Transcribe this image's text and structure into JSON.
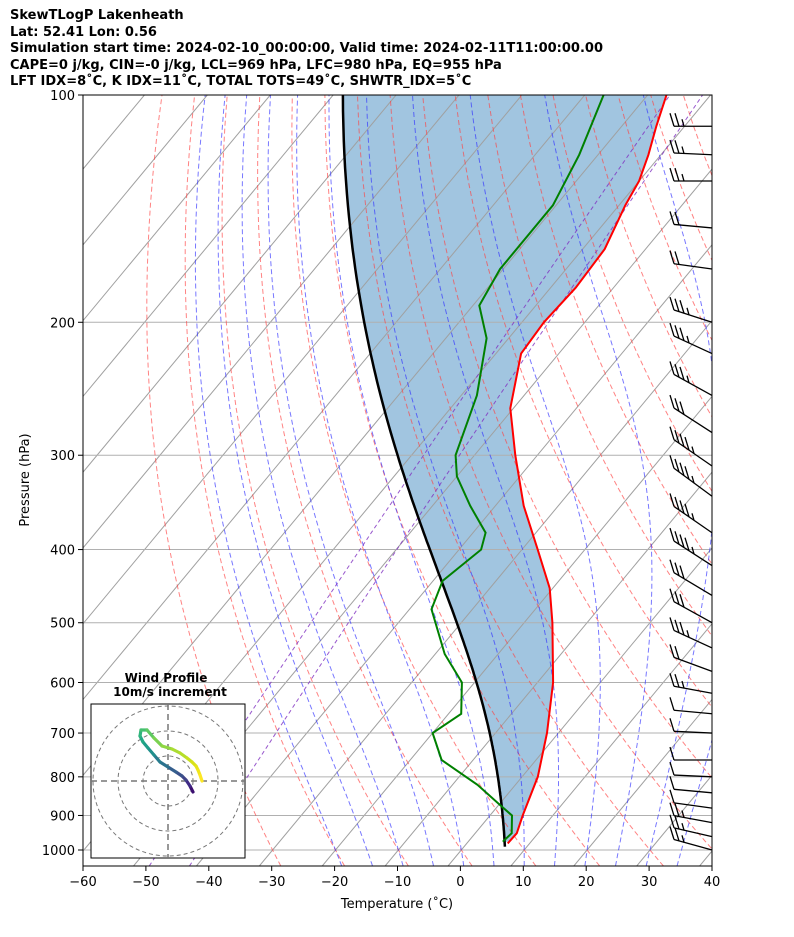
{
  "header": {
    "line1": "SkewTLogP Lakenheath",
    "line2": "Lat: 52.41   Lon: 0.56",
    "line3": "Simulation start time: 2024-02-10_00:00:00, Valid time: 2024-02-11T11:00:00.00",
    "line4": "CAPE=0 j/kg, CIN=-0 j/kg, LCL=969 hPa, LFC=980 hPa, EQ=955 hPa",
    "line5": "LFT IDX=8˚C, K IDX=11˚C, TOTAL TOTS=49˚C, SHWTR_IDX=5˚C"
  },
  "chart_data": {
    "type": "skewt",
    "xlabel": "Temperature (˚C)",
    "ylabel": "Pressure (hPa)",
    "xlim": [
      -60,
      40
    ],
    "ylim": [
      1050,
      100
    ],
    "x_ticks": [
      -60,
      -50,
      -40,
      -30,
      -20,
      -10,
      0,
      10,
      20,
      30,
      40
    ],
    "x_tick_labels": [
      "−60",
      "−50",
      "−40",
      "−30",
      "−20",
      "−10",
      "0",
      "10",
      "20",
      "30",
      "40"
    ],
    "y_ticks": [
      1000,
      900,
      800,
      700,
      600,
      500,
      400,
      300,
      200,
      100
    ],
    "y_tick_labels": [
      "1000",
      "900",
      "800",
      "700",
      "600",
      "500",
      "400",
      "300",
      "200",
      "100"
    ],
    "grid": true,
    "colors": {
      "temperature": "#ff0000",
      "dewpoint": "#008000",
      "parcel": "#000000",
      "cape_fill": "#a1c5e0",
      "dry_adiabats": "#ff4040",
      "moist_adiabats": "#3030ff",
      "mixing_ratio": "#8030c0",
      "isotherms": "#a0a0a0"
    },
    "temperature": [
      {
        "p": 980,
        "t": 6.5
      },
      {
        "p": 950,
        "t": 6.6
      },
      {
        "p": 900,
        "t": 5.2
      },
      {
        "p": 800,
        "t": 2.5
      },
      {
        "p": 700,
        "t": -1.8
      },
      {
        "p": 600,
        "t": -7.5
      },
      {
        "p": 500,
        "t": -15.5
      },
      {
        "p": 450,
        "t": -20.5
      },
      {
        "p": 400,
        "t": -27.5
      },
      {
        "p": 350,
        "t": -35.5
      },
      {
        "p": 300,
        "t": -43.5
      },
      {
        "p": 260,
        "t": -50.5
      },
      {
        "p": 220,
        "t": -56.0
      },
      {
        "p": 200,
        "t": -56.5
      },
      {
        "p": 180,
        "t": -56.0
      },
      {
        "p": 160,
        "t": -56.5
      },
      {
        "p": 140,
        "t": -59.0
      },
      {
        "p": 130,
        "t": -60.0
      },
      {
        "p": 120,
        "t": -62.0
      },
      {
        "p": 110,
        "t": -64.5
      },
      {
        "p": 100,
        "t": -67.0
      }
    ],
    "dewpoint": [
      {
        "p": 975,
        "t": 5.5
      },
      {
        "p": 950,
        "t": 5.8
      },
      {
        "p": 900,
        "t": 3.5
      },
      {
        "p": 870,
        "t": 0.0
      },
      {
        "p": 820,
        "t": -6.0
      },
      {
        "p": 760,
        "t": -15.0
      },
      {
        "p": 700,
        "t": -20.0
      },
      {
        "p": 660,
        "t": -18.0
      },
      {
        "p": 600,
        "t": -22.0
      },
      {
        "p": 550,
        "t": -28.5
      },
      {
        "p": 480,
        "t": -36.5
      },
      {
        "p": 440,
        "t": -38.5
      },
      {
        "p": 400,
        "t": -36.5
      },
      {
        "p": 380,
        "t": -38.0
      },
      {
        "p": 350,
        "t": -44.0
      },
      {
        "p": 320,
        "t": -50.0
      },
      {
        "p": 300,
        "t": -53.0
      },
      {
        "p": 250,
        "t": -57.5
      },
      {
        "p": 210,
        "t": -63.5
      },
      {
        "p": 190,
        "t": -69.0
      },
      {
        "p": 170,
        "t": -70.5
      },
      {
        "p": 140,
        "t": -70.5
      },
      {
        "p": 120,
        "t": -73.0
      },
      {
        "p": 100,
        "t": -77.0
      }
    ],
    "parcel_surface": {
      "p": 990,
      "t": 6.5
    },
    "wind_barbs_pressure": [
      110,
      120,
      130,
      150,
      170,
      200,
      220,
      250,
      280,
      310,
      340,
      380,
      420,
      460,
      500,
      540,
      580,
      620,
      660,
      700,
      760,
      800,
      840,
      880,
      920,
      960,
      1000
    ],
    "inset": {
      "title1": "Wind Profile",
      "title2": "10m/s increment",
      "rings_ms": [
        10,
        20,
        30
      ]
    }
  }
}
